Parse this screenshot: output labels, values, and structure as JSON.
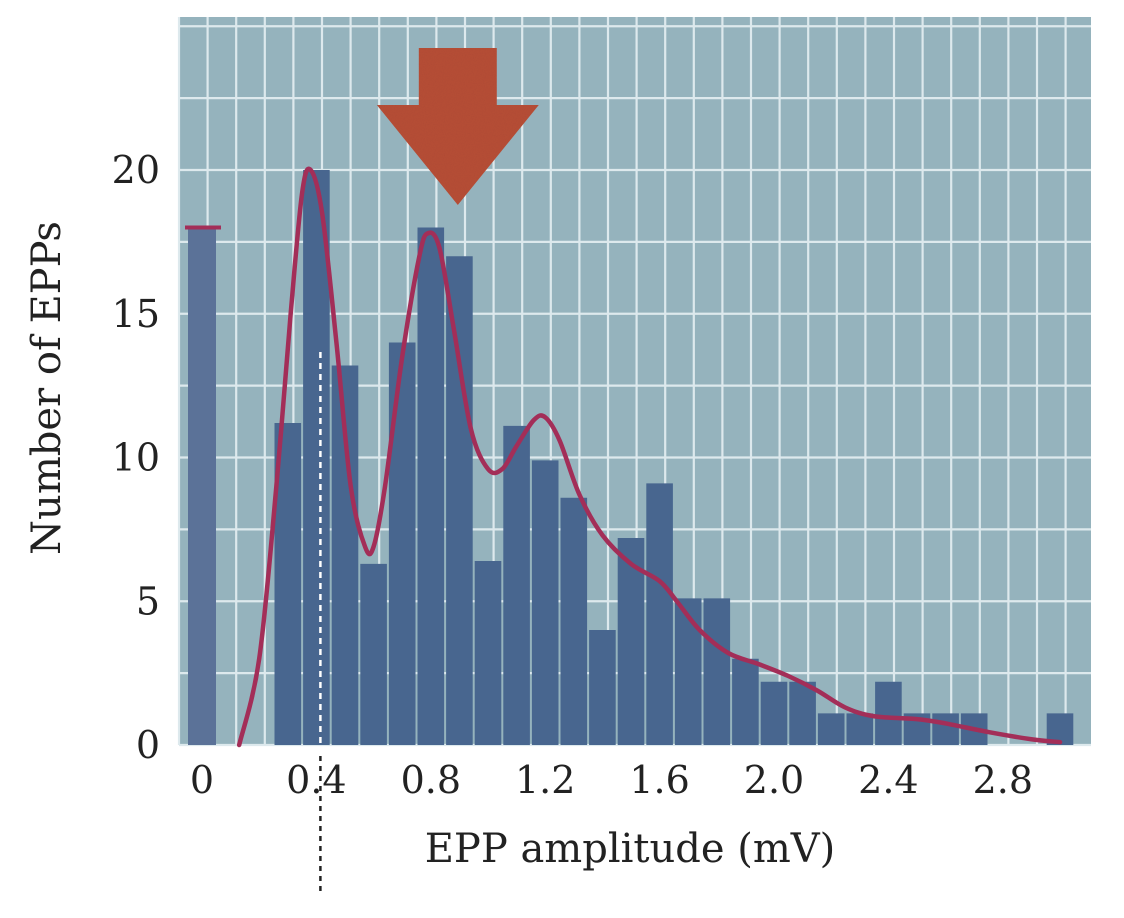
{
  "chart_data": {
    "type": "bar",
    "title": "",
    "xlabel": "EPP amplitude (mV)",
    "ylabel": "Number of  EPPs",
    "xlim": [
      -0.1,
      3.1
    ],
    "ylim": [
      0,
      25
    ],
    "x_ticks": [
      "0",
      "0.4",
      "0.8",
      "1.2",
      "1.6",
      "2.0",
      "2.4",
      "2.8"
    ],
    "y_ticks": [
      "0",
      "5",
      "10",
      "15",
      "20"
    ],
    "grid": true,
    "failures_bar": {
      "x": 0,
      "value": 18
    },
    "bars": [
      {
        "x": 0.3,
        "value": 11.2
      },
      {
        "x": 0.4,
        "value": 20
      },
      {
        "x": 0.5,
        "value": 13.2
      },
      {
        "x": 0.6,
        "value": 6.3
      },
      {
        "x": 0.7,
        "value": 14
      },
      {
        "x": 0.8,
        "value": 18
      },
      {
        "x": 0.9,
        "value": 17
      },
      {
        "x": 1.0,
        "value": 6.4
      },
      {
        "x": 1.1,
        "value": 11.1
      },
      {
        "x": 1.2,
        "value": 9.9
      },
      {
        "x": 1.3,
        "value": 8.6
      },
      {
        "x": 1.4,
        "value": 4
      },
      {
        "x": 1.5,
        "value": 7.2
      },
      {
        "x": 1.6,
        "value": 9.1
      },
      {
        "x": 1.7,
        "value": 5.1
      },
      {
        "x": 1.8,
        "value": 5.1
      },
      {
        "x": 1.9,
        "value": 3
      },
      {
        "x": 2.0,
        "value": 2.2
      },
      {
        "x": 2.1,
        "value": 2.2
      },
      {
        "x": 2.2,
        "value": 1.1
      },
      {
        "x": 2.3,
        "value": 1.1
      },
      {
        "x": 2.4,
        "value": 2.2
      },
      {
        "x": 2.5,
        "value": 1.1
      },
      {
        "x": 2.6,
        "value": 1.1
      },
      {
        "x": 2.7,
        "value": 1.1
      },
      {
        "x": 2.8,
        "value": 0
      },
      {
        "x": 2.9,
        "value": 0
      },
      {
        "x": 3.0,
        "value": 1.1
      }
    ],
    "fit_curve": [
      [
        0.13,
        0
      ],
      [
        0.2,
        3
      ],
      [
        0.26,
        9
      ],
      [
        0.31,
        15
      ],
      [
        0.35,
        19.2
      ],
      [
        0.38,
        20
      ],
      [
        0.42,
        18.5
      ],
      [
        0.47,
        14
      ],
      [
        0.52,
        9
      ],
      [
        0.57,
        6.9
      ],
      [
        0.6,
        6.9
      ],
      [
        0.64,
        9
      ],
      [
        0.7,
        13.5
      ],
      [
        0.76,
        17
      ],
      [
        0.79,
        17.8
      ],
      [
        0.83,
        17.3
      ],
      [
        0.88,
        14.5
      ],
      [
        0.94,
        11
      ],
      [
        1.0,
        9.6
      ],
      [
        1.05,
        9.6
      ],
      [
        1.1,
        10.4
      ],
      [
        1.16,
        11.3
      ],
      [
        1.2,
        11.4
      ],
      [
        1.25,
        10.6
      ],
      [
        1.32,
        8.7
      ],
      [
        1.4,
        7.3
      ],
      [
        1.5,
        6.3
      ],
      [
        1.6,
        5.7
      ],
      [
        1.66,
        5
      ],
      [
        1.74,
        4
      ],
      [
        1.84,
        3.2
      ],
      [
        1.95,
        2.8
      ],
      [
        2.05,
        2.4
      ],
      [
        2.15,
        1.9
      ],
      [
        2.25,
        1.3
      ],
      [
        2.35,
        1
      ],
      [
        2.5,
        0.9
      ],
      [
        2.6,
        0.75
      ],
      [
        2.75,
        0.45
      ],
      [
        2.9,
        0.2
      ],
      [
        3.0,
        0.1
      ]
    ],
    "fit_failures_mark": {
      "x": 0,
      "value": 18
    },
    "quantal_marker_x": 0.4,
    "arrow_marker_x": 0.8,
    "colors": {
      "plot_background": "#95b3bd",
      "grid": "#dde9ed",
      "bar": "#48668f",
      "failures_bar": "#5b7298",
      "fit_curve": "#a32e58",
      "arrow": "#b74e36",
      "dotted_marker": "#ffffff",
      "dotted_marker_below": "#222222"
    }
  }
}
